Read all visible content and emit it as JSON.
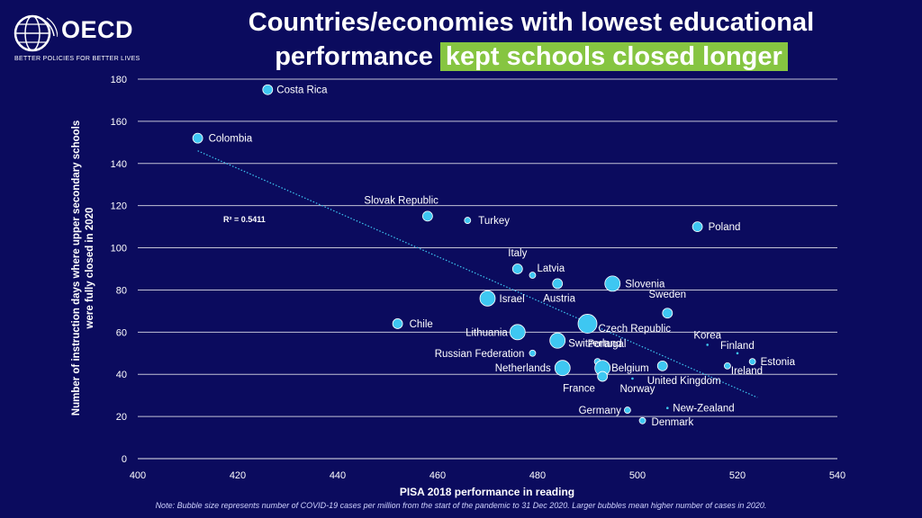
{
  "header": {
    "logo_text": "OECD",
    "logo_tagline": "BETTER POLICIES FOR BETTER LIVES",
    "title_line1": "Countries/economies with lowest educational",
    "title_line2_plain": "performance",
    "title_line2_highlight": "kept schools closed longer"
  },
  "colors": {
    "background": "#0b0b5e",
    "bubble": "#3ec7f2",
    "highlight": "#86c541",
    "gridline": "#ffffff",
    "trendline": "#3ec7f2"
  },
  "icons": [
    "oecd-globe-icon"
  ],
  "note": "Note: Bubble size represents number of COVID-19 cases per million from the start of the pandemic to 31 Dec 2020. Larger bubbles mean higher number of cases in 2020.",
  "chart_data": {
    "type": "scatter",
    "title": "Countries/economies with lowest educational performance kept schools closed longer",
    "xlabel": "PISA 2018 performance in reading",
    "ylabel_line1": "Number of instruction days where upper secondary schools",
    "ylabel_line2": "were fully closed in 2020",
    "xlim": [
      400,
      540
    ],
    "ylim": [
      0,
      180
    ],
    "xticks": [
      400,
      420,
      440,
      460,
      480,
      500,
      520,
      540
    ],
    "yticks": [
      0,
      20,
      40,
      60,
      80,
      100,
      120,
      140,
      160,
      180
    ],
    "grid": "horizontal",
    "trendline": {
      "r2_label": "R² = 0.5411",
      "x": [
        412,
        524
      ],
      "y": [
        146,
        29
      ]
    },
    "points": [
      {
        "label": "Costa Rica",
        "x": 426,
        "y": 175,
        "size": "medium"
      },
      {
        "label": "Colombia",
        "x": 412,
        "y": 152,
        "size": "medium"
      },
      {
        "label": "Slovak Republic",
        "x": 458,
        "y": 115,
        "size": "medium"
      },
      {
        "label": "Turkey",
        "x": 466,
        "y": 113,
        "size": "small"
      },
      {
        "label": "Poland",
        "x": 512,
        "y": 110,
        "size": "medium"
      },
      {
        "label": "Italy",
        "x": 476,
        "y": 90,
        "size": "medium"
      },
      {
        "label": "Latvia",
        "x": 479,
        "y": 87,
        "size": "small"
      },
      {
        "label": "Austria",
        "x": 484,
        "y": 83,
        "size": "medium"
      },
      {
        "label": "Slovenia",
        "x": 495,
        "y": 83,
        "size": "large"
      },
      {
        "label": "Israel",
        "x": 470,
        "y": 76,
        "size": "large"
      },
      {
        "label": "Sweden",
        "x": 506,
        "y": 69,
        "size": "medium"
      },
      {
        "label": "Chile",
        "x": 452,
        "y": 64,
        "size": "medium"
      },
      {
        "label": "Czech Republic",
        "x": 490,
        "y": 64,
        "size": "xlarge"
      },
      {
        "label": "Lithuania",
        "x": 476,
        "y": 60,
        "size": "large"
      },
      {
        "label": "Switzerland",
        "x": 484,
        "y": 56,
        "size": "large"
      },
      {
        "label": "Korea",
        "x": 514,
        "y": 54,
        "size": "dot"
      },
      {
        "label": "Finland",
        "x": 520,
        "y": 50,
        "size": "dot"
      },
      {
        "label": "Russian Federation",
        "x": 479,
        "y": 50,
        "size": "small"
      },
      {
        "label": "Portugal",
        "x": 492,
        "y": 46,
        "size": "small"
      },
      {
        "label": "Estonia",
        "x": 523,
        "y": 46,
        "size": "small"
      },
      {
        "label": "Netherlands",
        "x": 485,
        "y": 43,
        "size": "large"
      },
      {
        "label": "Belgium",
        "x": 493,
        "y": 43,
        "size": "large"
      },
      {
        "label": "Ireland",
        "x": 518,
        "y": 44,
        "size": "small"
      },
      {
        "label": "United Kingdom",
        "x": 505,
        "y": 44,
        "size": "medium"
      },
      {
        "label": "France",
        "x": 493,
        "y": 39,
        "size": "medium"
      },
      {
        "label": "Norway",
        "x": 499,
        "y": 38,
        "size": "dot"
      },
      {
        "label": "Germany",
        "x": 498,
        "y": 23,
        "size": "small"
      },
      {
        "label": "New-Zealand",
        "x": 506,
        "y": 24,
        "size": "dot"
      },
      {
        "label": "Denmark",
        "x": 501,
        "y": 18,
        "size": "small"
      }
    ]
  }
}
